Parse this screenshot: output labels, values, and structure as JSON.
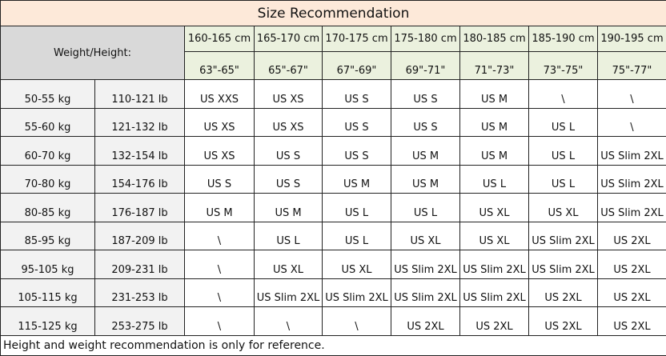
{
  "title": "Size Recommendation",
  "corner_label": "Weight/Height:",
  "colors": {
    "title_bg": "#fde9d9",
    "corner_bg": "#d9d9d9",
    "header_bg": "#ebf1de",
    "weight_bg": "#f2f2f2"
  },
  "heights_cm": [
    "160-165 cm",
    "165-170 cm",
    "170-175 cm",
    "175-180 cm",
    "180-185 cm",
    "185-190 cm",
    "190-195 cm"
  ],
  "heights_in": [
    "63\"-65\"",
    "65\"-67\"",
    "67\"-69\"",
    "69\"-71\"",
    "71\"-73\"",
    "73\"-75\"",
    "75\"-77\""
  ],
  "rows": [
    {
      "kg": "50-55 kg",
      "lb": "110-121 lb",
      "sizes": [
        "US XXS",
        "US XS",
        "US S",
        "US S",
        "US M",
        "\\",
        "\\"
      ]
    },
    {
      "kg": "55-60 kg",
      "lb": "121-132 lb",
      "sizes": [
        "US XS",
        "US XS",
        "US S",
        "US S",
        "US M",
        "US L",
        "\\"
      ]
    },
    {
      "kg": "60-70 kg",
      "lb": "132-154 lb",
      "sizes": [
        "US XS",
        "US S",
        "US S",
        "US M",
        "US M",
        "US L",
        "US Slim 2XL"
      ]
    },
    {
      "kg": "70-80 kg",
      "lb": "154-176 lb",
      "sizes": [
        "US S",
        "US S",
        "US M",
        "US M",
        "US L",
        "US L",
        "US Slim 2XL"
      ]
    },
    {
      "kg": "80-85 kg",
      "lb": "176-187 lb",
      "sizes": [
        "US M",
        "US M",
        "US L",
        "US L",
        "US XL",
        "US XL",
        "US Slim 2XL"
      ]
    },
    {
      "kg": "85-95 kg",
      "lb": "187-209 lb",
      "sizes": [
        "\\",
        "US L",
        "US L",
        "US XL",
        "US XL",
        "US Slim 2XL",
        "US 2XL"
      ]
    },
    {
      "kg": "95-105 kg",
      "lb": "209-231 lb",
      "sizes": [
        "\\",
        "US XL",
        "US XL",
        "US Slim 2XL",
        "US Slim 2XL",
        "US Slim 2XL",
        "US 2XL"
      ]
    },
    {
      "kg": "105-115 kg",
      "lb": "231-253 lb",
      "sizes": [
        "\\",
        "US Slim 2XL",
        "US Slim 2XL",
        "US Slim 2XL",
        "US Slim 2XL",
        "US 2XL",
        "US 2XL"
      ]
    },
    {
      "kg": "115-125 kg",
      "lb": "253-275 lb",
      "sizes": [
        "\\",
        "\\",
        "\\",
        "US 2XL",
        "US 2XL",
        "US 2XL",
        "US 2XL"
      ]
    }
  ],
  "footnote": "Height and weight recommendation is only for reference."
}
